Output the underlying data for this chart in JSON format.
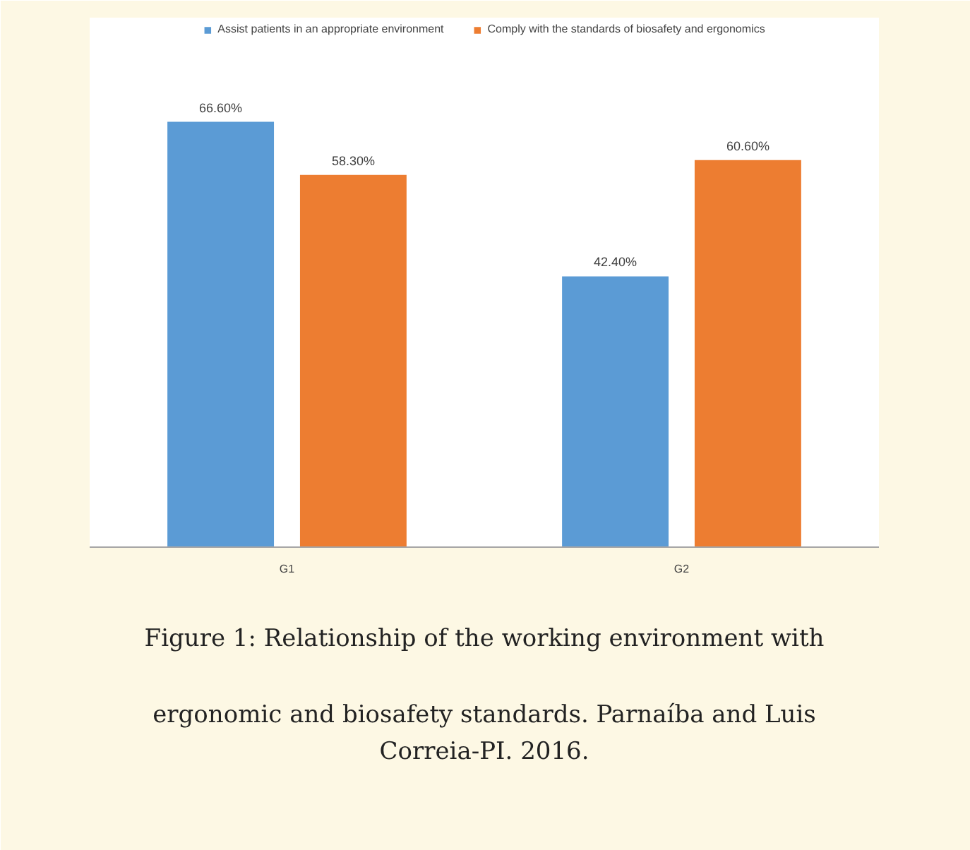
{
  "chart_data": {
    "type": "bar",
    "categories": [
      "G1",
      "G2"
    ],
    "series": [
      {
        "name": "Assist patients in an appropriate environment",
        "color": "#5b9bd5",
        "values": [
          66.6,
          42.4
        ],
        "value_labels": [
          "66.60%",
          "42.40%"
        ]
      },
      {
        "name": "Comply with the standards of biosafety and ergonomics",
        "color": "#ed7d31",
        "values": [
          58.3,
          60.6
        ],
        "value_labels": [
          "58.30%",
          "60.60%"
        ]
      }
    ],
    "legend": "top",
    "grid": false,
    "annotations": [
      "Figure 1: Relationship of the working environment with ergonomic and biosafety standards. Parnaíba and Luis Correia-PI. 2016."
    ]
  }
}
